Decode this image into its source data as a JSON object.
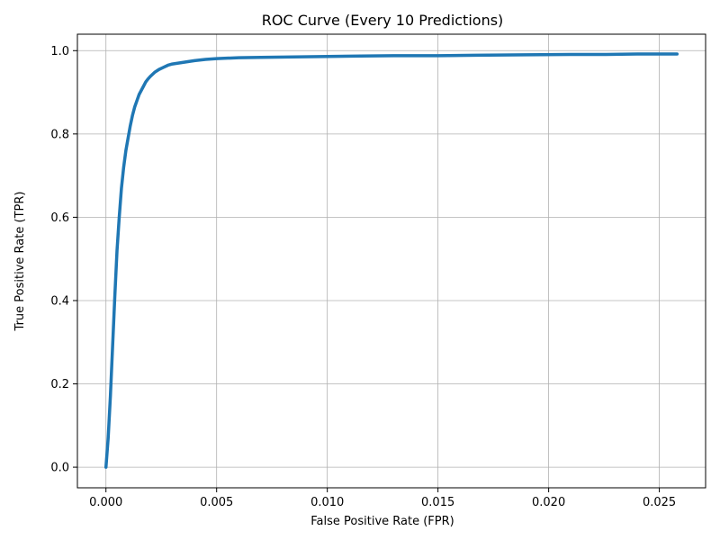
{
  "chart_data": {
    "type": "line",
    "title": "ROC Curve (Every 10 Predictions)",
    "xlabel": "False Positive Rate (FPR)",
    "ylabel": "True Positive Rate (TPR)",
    "xlim": [
      -0.00129,
      0.02709
    ],
    "ylim": [
      -0.0495,
      1.0395
    ],
    "xticks": [
      0.0,
      0.005,
      0.01,
      0.015,
      0.02,
      0.025
    ],
    "xtick_labels": [
      "0.000",
      "0.005",
      "0.010",
      "0.015",
      "0.020",
      "0.025"
    ],
    "yticks": [
      0.0,
      0.2,
      0.4,
      0.6,
      0.8,
      1.0
    ],
    "ytick_labels": [
      "0.0",
      "0.2",
      "0.4",
      "0.6",
      "0.8",
      "1.0"
    ],
    "grid": true,
    "series": [
      {
        "color": "#1f77b4",
        "x": [
          0.0,
          0.0001,
          0.0002,
          0.0003,
          0.0004,
          0.0005,
          0.0006,
          0.0007,
          0.0008,
          0.0009,
          0.001,
          0.0011,
          0.0012,
          0.0013,
          0.0014,
          0.0015,
          0.0016,
          0.0017,
          0.0018,
          0.0019,
          0.002,
          0.0022,
          0.0024,
          0.0026,
          0.0028,
          0.003,
          0.0035,
          0.004,
          0.0045,
          0.005,
          0.006,
          0.007,
          0.0085,
          0.01,
          0.0115,
          0.013,
          0.015,
          0.0167,
          0.019,
          0.021,
          0.0226,
          0.024,
          0.0258
        ],
        "y": [
          0.0,
          0.07,
          0.17,
          0.29,
          0.41,
          0.52,
          0.6,
          0.67,
          0.72,
          0.76,
          0.79,
          0.82,
          0.845,
          0.865,
          0.88,
          0.895,
          0.905,
          0.915,
          0.925,
          0.932,
          0.938,
          0.948,
          0.955,
          0.96,
          0.965,
          0.968,
          0.972,
          0.976,
          0.979,
          0.981,
          0.983,
          0.984,
          0.985,
          0.986,
          0.987,
          0.988,
          0.988,
          0.989,
          0.99,
          0.991,
          0.991,
          0.992,
          0.992
        ]
      }
    ]
  }
}
